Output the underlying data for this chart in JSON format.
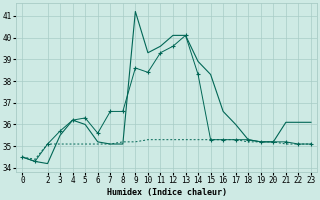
{
  "xlabel": "Humidex (Indice chaleur)",
  "background_color": "#ceeae4",
  "grid_color": "#a8ccc6",
  "line_color": "#006655",
  "xlim": [
    -0.5,
    23.5
  ],
  "ylim": [
    33.8,
    41.6
  ],
  "yticks": [
    34,
    35,
    36,
    37,
    38,
    39,
    40,
    41
  ],
  "xticks": [
    0,
    2,
    3,
    4,
    5,
    6,
    7,
    8,
    9,
    10,
    11,
    12,
    13,
    14,
    15,
    16,
    17,
    18,
    19,
    20,
    21,
    22,
    23
  ],
  "s1_x": [
    0,
    1,
    2,
    3,
    4,
    5,
    6,
    7,
    8,
    9,
    10,
    11,
    12,
    13,
    14,
    15,
    16,
    17,
    18,
    19,
    20,
    21,
    22,
    23
  ],
  "s1_y": [
    34.5,
    34.3,
    34.2,
    35.5,
    36.2,
    36.0,
    35.2,
    35.1,
    35.1,
    41.2,
    39.3,
    39.6,
    40.1,
    40.1,
    38.9,
    38.3,
    36.6,
    36.0,
    35.3,
    35.2,
    35.2,
    36.1,
    36.1,
    36.1
  ],
  "s2_x": [
    0,
    1,
    2,
    3,
    4,
    5,
    6,
    7,
    8,
    9,
    10,
    11,
    12,
    13,
    14,
    15,
    16,
    17,
    18,
    19,
    20,
    21,
    22,
    23
  ],
  "s2_y": [
    34.5,
    34.3,
    35.1,
    35.7,
    36.2,
    36.3,
    35.6,
    36.6,
    36.6,
    38.6,
    38.4,
    39.3,
    39.6,
    40.1,
    38.3,
    35.3,
    35.3,
    35.3,
    35.3,
    35.2,
    35.2,
    35.2,
    35.1,
    35.1
  ],
  "s3_x": [
    0,
    1,
    2,
    3,
    4,
    5,
    6,
    7,
    8,
    9,
    10,
    11,
    12,
    13,
    14,
    15,
    16,
    17,
    18,
    19,
    20,
    21,
    22,
    23
  ],
  "s3_y": [
    34.5,
    34.4,
    35.1,
    35.1,
    35.1,
    35.1,
    35.1,
    35.1,
    35.2,
    35.2,
    35.3,
    35.3,
    35.3,
    35.3,
    35.3,
    35.3,
    35.3,
    35.3,
    35.2,
    35.2,
    35.2,
    35.1,
    35.1,
    35.1
  ]
}
